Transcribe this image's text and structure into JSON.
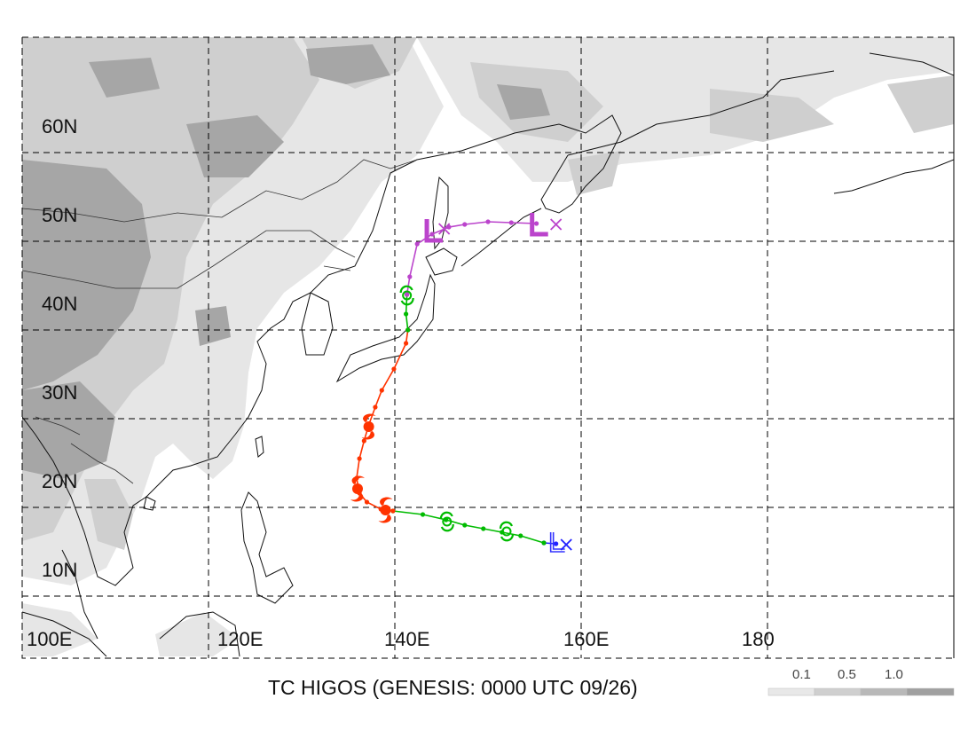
{
  "caption": "TC HIGOS (GENESIS: 0000 UTC 09/26)",
  "lat_labels": [
    "60N",
    "50N",
    "40N",
    "30N",
    "20N",
    "10N"
  ],
  "lon_labels": [
    "100E",
    "120E",
    "140E",
    "160E",
    "180"
  ],
  "map_extent": {
    "lon_min": 100,
    "lon_max": 200,
    "lat_min": 3,
    "lat_max": 73
  },
  "legend": {
    "labels": [
      "0.1",
      "0.5",
      "1.0"
    ],
    "colors": [
      "#ffffff",
      "#e8e8e8",
      "#cfcfcf",
      "#b8b8b8",
      "#a0a0a0"
    ]
  },
  "colors": {
    "background": "#ffffff",
    "terrain_low": "#e6e6e6",
    "terrain_mid": "#cfcfcf",
    "terrain_high": "#a6a6a6",
    "depression": "#0000ff",
    "tropical_storm": "#00bb00",
    "typhoon": "#ff3300",
    "extratropical": "#bb44cc"
  },
  "track": {
    "segments": [
      {
        "stage": "depression",
        "color": "#2222ff",
        "points": [
          [
            157.3,
            15.9
          ],
          [
            156.0,
            16.0
          ]
        ]
      },
      {
        "stage": "tropical_storm",
        "color": "#00bb00",
        "points": [
          [
            156.0,
            16.0
          ],
          [
            153.5,
            16.8
          ],
          [
            151.5,
            17.2
          ],
          [
            149.5,
            17.6
          ],
          [
            147.5,
            18.0
          ],
          [
            145.5,
            18.6
          ],
          [
            143.0,
            19.2
          ],
          [
            139.8,
            19.6
          ]
        ]
      },
      {
        "stage": "typhoon",
        "color": "#ff3300",
        "points": [
          [
            139.8,
            19.6
          ],
          [
            138.5,
            19.8
          ],
          [
            137.0,
            20.6
          ],
          [
            136.2,
            21.6
          ],
          [
            135.9,
            23.3
          ],
          [
            136.2,
            25.5
          ],
          [
            136.7,
            27.5
          ],
          [
            137.2,
            29.3
          ],
          [
            137.9,
            31.3
          ],
          [
            138.6,
            33.2
          ],
          [
            139.9,
            35.6
          ],
          [
            141.2,
            38.5
          ],
          [
            141.4,
            40.0
          ]
        ]
      },
      {
        "stage": "tropical_storm",
        "color": "#00bb00",
        "points": [
          [
            141.4,
            40.0
          ],
          [
            141.2,
            41.8
          ],
          [
            141.3,
            44.0
          ]
        ]
      },
      {
        "stage": "extratropical",
        "color": "#bb44cc",
        "points": [
          [
            141.3,
            44.0
          ],
          [
            141.6,
            46.0
          ],
          [
            142.4,
            49.7
          ],
          [
            144.0,
            50.8
          ],
          [
            145.8,
            51.6
          ],
          [
            147.5,
            51.9
          ],
          [
            150.0,
            52.2
          ],
          [
            152.5,
            52.1
          ],
          [
            155.2,
            52.0
          ]
        ]
      }
    ],
    "markers": [
      {
        "symbol": "L",
        "stage": "depression",
        "color": "#3333ff",
        "lon": 157.3,
        "lat": 15.9
      },
      {
        "symbol": "S",
        "stage": "tropical_storm",
        "color": "#00bb00",
        "lon": 152.0,
        "lat": 17.3
      },
      {
        "symbol": "S",
        "stage": "tropical_storm",
        "color": "#00bb00",
        "lon": 145.6,
        "lat": 18.4
      },
      {
        "symbol": "H",
        "stage": "typhoon",
        "color": "#ff3300",
        "lon": 139.0,
        "lat": 19.7
      },
      {
        "symbol": "H",
        "stage": "typhoon",
        "color": "#ff3300",
        "lon": 136.0,
        "lat": 22.1
      },
      {
        "symbol": "H",
        "stage": "typhoon",
        "color": "#ff3300",
        "lon": 137.2,
        "lat": 29.1
      },
      {
        "symbol": "S",
        "stage": "tropical_storm",
        "color": "#00bb00",
        "lon": 141.3,
        "lat": 43.9
      },
      {
        "symbol": "L",
        "stage": "extratropical",
        "color": "#bb44cc",
        "lon": 144.1,
        "lat": 51.1
      },
      {
        "symbol": "L",
        "stage": "extratropical",
        "color": "#bb44cc",
        "lon": 155.4,
        "lat": 51.8
      }
    ],
    "crosses": [
      {
        "color": "#2222ff",
        "lon": 158.4,
        "lat": 15.8
      },
      {
        "color": "#bb44cc",
        "lon": 145.3,
        "lat": 51.4
      },
      {
        "color": "#bb44cc",
        "lon": 157.3,
        "lat": 51.9
      }
    ]
  }
}
